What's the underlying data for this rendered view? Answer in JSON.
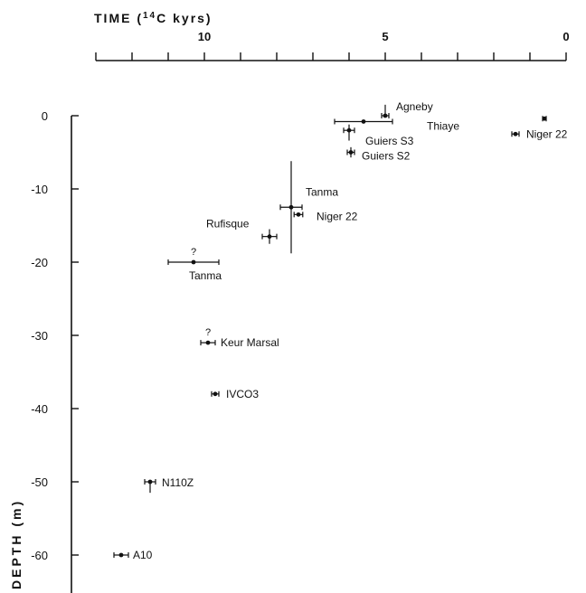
{
  "chart_data": {
    "type": "scatter",
    "title": "",
    "xlabel_prefix": "TIME (",
    "xlabel_sup": "14",
    "xlabel_suffix": "C kyrs)",
    "ylabel": "DEPTH (m)",
    "x_reversed": true,
    "xlim": [
      13,
      0
    ],
    "ylim": [
      -64,
      0
    ],
    "x_tick_values": [
      13,
      12,
      11,
      10,
      9,
      8,
      7,
      6,
      5,
      4,
      3,
      2,
      1,
      0
    ],
    "x_tick_labels": [
      {
        "value": 10,
        "text": "10"
      },
      {
        "value": 5,
        "text": "5"
      },
      {
        "value": 0,
        "text": "0"
      }
    ],
    "y_ticks": [
      0,
      -10,
      -20,
      -30,
      -40,
      -50,
      -60
    ],
    "points": [
      {
        "label": "Agneby",
        "x": 5.0,
        "y": 0.0,
        "xerr": [
          0.1,
          0.1
        ],
        "yerr": [
          1.5,
          0.0
        ],
        "label_dx": 12,
        "label_dy": -6,
        "label_anchor": "start"
      },
      {
        "label": "Thiaye",
        "x": 5.6,
        "y": -0.8,
        "xerr": [
          0.8,
          0.8
        ],
        "yerr": [
          0.0,
          0.0
        ],
        "label_dx": 70,
        "label_dy": 9,
        "label_anchor": "start"
      },
      {
        "label": "Guiers S3",
        "x": 6.0,
        "y": -2.0,
        "xerr": [
          0.15,
          0.15
        ],
        "yerr": [
          0.8,
          1.4
        ],
        "label_dx": 18,
        "label_dy": 16,
        "label_anchor": "start"
      },
      {
        "label": "Guiers S2",
        "x": 5.95,
        "y": -5.0,
        "xerr": [
          0.1,
          0.1
        ],
        "yerr": [
          0.7,
          0.7
        ],
        "label_dx": 12,
        "label_dy": 8,
        "label_anchor": "start"
      },
      {
        "label": "Niger 22",
        "x": 0.6,
        "y": -0.4,
        "xerr": [
          0.05,
          0.05
        ],
        "yerr": [
          0.0,
          0.0
        ],
        "label_dx": 0,
        "label_dy": 0,
        "label_anchor": "start",
        "hide_label": true
      },
      {
        "label": "Niger 22",
        "x": 1.4,
        "y": -2.5,
        "xerr": [
          0.1,
          0.1
        ],
        "yerr": [
          0.0,
          0.0
        ],
        "label_dx": 12,
        "label_dy": 4,
        "label_anchor": "start"
      },
      {
        "label": "Tanma",
        "x": 7.6,
        "y": -12.5,
        "xerr": [
          0.3,
          0.3
        ],
        "yerr": [
          6.3,
          6.3
        ],
        "label_dx": 16,
        "label_dy": -13,
        "label_anchor": "start"
      },
      {
        "label": "Niger 22",
        "x": 7.4,
        "y": -13.5,
        "xerr": [
          0.12,
          0.12
        ],
        "yerr": [
          0.0,
          0.0
        ],
        "label_dx": 20,
        "label_dy": 6,
        "label_anchor": "start"
      },
      {
        "label": "Rufisque",
        "x": 8.2,
        "y": -16.5,
        "xerr": [
          0.2,
          0.2
        ],
        "yerr": [
          1.0,
          1.0
        ],
        "label_dx": -70,
        "label_dy": -10,
        "label_anchor": "start"
      },
      {
        "label": "Tanma",
        "x": 10.3,
        "y": -20.0,
        "xerr": [
          0.7,
          0.7
        ],
        "yerr": [
          0.0,
          0.0
        ],
        "label_dx": -5,
        "label_dy": 19,
        "label_anchor": "start",
        "question": true
      },
      {
        "label": "Keur Marsal",
        "x": 9.9,
        "y": -31.0,
        "xerr": [
          0.2,
          0.2
        ],
        "yerr": [
          0.0,
          0.0
        ],
        "label_dx": 14,
        "label_dy": 4,
        "label_anchor": "start",
        "question": true
      },
      {
        "label": "IVCO3",
        "x": 9.7,
        "y": -38.0,
        "xerr": [
          0.1,
          0.1
        ],
        "yerr": [
          0.0,
          0.0
        ],
        "label_dx": 12,
        "label_dy": 4,
        "label_anchor": "start"
      },
      {
        "label": "N110Z",
        "x": 11.5,
        "y": -50.0,
        "xerr": [
          0.15,
          0.15
        ],
        "yerr": [
          0.0,
          1.5
        ],
        "label_dx": 13,
        "label_dy": 5,
        "label_anchor": "start"
      },
      {
        "label": "A10",
        "x": 12.3,
        "y": -60.0,
        "xerr": [
          0.2,
          0.2
        ],
        "yerr": [
          0.0,
          0.0
        ],
        "label_dx": 13,
        "label_dy": 4,
        "label_anchor": "start"
      }
    ],
    "question_mark": "?"
  }
}
